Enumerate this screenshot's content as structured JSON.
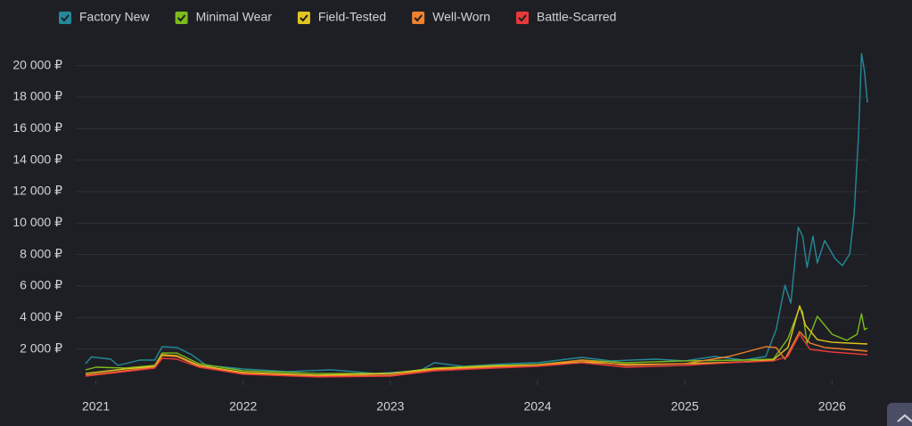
{
  "chart_data": {
    "type": "line",
    "grid": true,
    "legend": "top-left",
    "xlim": [
      2020.93,
      2026.24
    ],
    "xticks": [
      2021,
      2022,
      2023,
      2024,
      2025,
      2026
    ],
    "ylim": [
      0,
      21000
    ],
    "yticks": [
      {
        "value": 2000,
        "label": "2 000 ₽"
      },
      {
        "value": 4000,
        "label": "4 000 ₽"
      },
      {
        "value": 6000,
        "label": "6 000 ₽"
      },
      {
        "value": 8000,
        "label": "8 000 ₽"
      },
      {
        "value": 10000,
        "label": "10 000 ₽"
      },
      {
        "value": 12000,
        "label": "12 000 ₽"
      },
      {
        "value": 14000,
        "label": "14 000 ₽"
      },
      {
        "value": 16000,
        "label": "16 000 ₽"
      },
      {
        "value": 18000,
        "label": "18 000 ₽"
      },
      {
        "value": 20000,
        "label": "20 000 ₽"
      }
    ],
    "series": [
      {
        "name": "Factory New",
        "color": "#23899a",
        "x": [
          2020.93,
          2020.97,
          2021.1,
          2021.15,
          2021.3,
          2021.4,
          2021.45,
          2021.55,
          2021.65,
          2021.75,
          2022.0,
          2022.3,
          2022.6,
          2022.9,
          2023.2,
          2023.3,
          2023.5,
          2023.8,
          2024.0,
          2024.3,
          2024.5,
          2024.8,
          2025.0,
          2025.2,
          2025.4,
          2025.55,
          2025.62,
          2025.68,
          2025.72,
          2025.77,
          2025.8,
          2025.83,
          2025.87,
          2025.9,
          2025.95,
          2026.02,
          2026.07,
          2026.12,
          2026.15,
          2026.18,
          2026.2,
          2026.22,
          2026.24
        ],
        "values": [
          1070,
          1500,
          1360,
          960,
          1300,
          1300,
          2150,
          2100,
          1640,
          960,
          740,
          570,
          680,
          450,
          620,
          1130,
          900,
          1070,
          1130,
          1470,
          1250,
          1360,
          1250,
          1530,
          1300,
          1530,
          3230,
          6050,
          4920,
          9730,
          9170,
          7190,
          9170,
          7470,
          8890,
          7750,
          7300,
          8040,
          10580,
          15680,
          20770,
          19640,
          17660
        ]
      },
      {
        "name": "Minimal Wear",
        "color": "#7dbb1c",
        "x": [
          2020.93,
          2021.0,
          2021.2,
          2021.4,
          2021.45,
          2021.55,
          2021.7,
          2022.0,
          2022.5,
          2023.0,
          2023.3,
          2023.7,
          2024.0,
          2024.3,
          2024.6,
          2025.0,
          2025.4,
          2025.6,
          2025.7,
          2025.78,
          2025.8,
          2025.83,
          2025.9,
          2026.0,
          2026.1,
          2026.17,
          2026.2,
          2026.22,
          2026.24
        ],
        "values": [
          680,
          850,
          790,
          960,
          1750,
          1750,
          1070,
          620,
          450,
          450,
          790,
          960,
          1020,
          1300,
          1130,
          1250,
          1300,
          1360,
          2660,
          4640,
          4360,
          2380,
          4080,
          2940,
          2550,
          2940,
          4240,
          3230,
          3340
        ]
      },
      {
        "name": "Field-Tested",
        "color": "#e3c51f",
        "x": [
          2020.93,
          2021.2,
          2021.4,
          2021.45,
          2021.55,
          2021.7,
          2022.0,
          2022.5,
          2023.0,
          2023.3,
          2023.7,
          2024.0,
          2024.3,
          2024.6,
          2025.0,
          2025.4,
          2025.6,
          2025.7,
          2025.78,
          2025.82,
          2025.9,
          2026.0,
          2026.24
        ],
        "values": [
          450,
          740,
          900,
          1640,
          1580,
          960,
          510,
          340,
          450,
          740,
          900,
          960,
          1190,
          1020,
          1070,
          1190,
          1300,
          2100,
          4750,
          3510,
          2600,
          2430,
          2320
        ]
      },
      {
        "name": "Well-Worn",
        "color": "#f0822c",
        "x": [
          2020.93,
          2021.2,
          2021.4,
          2021.45,
          2021.55,
          2021.7,
          2022.0,
          2022.5,
          2023.0,
          2023.3,
          2023.7,
          2024.0,
          2024.3,
          2024.6,
          2025.0,
          2025.3,
          2025.55,
          2025.62,
          2025.68,
          2025.78,
          2025.85,
          2025.95,
          2026.1,
          2026.24
        ],
        "values": [
          340,
          620,
          850,
          1580,
          1530,
          900,
          450,
          280,
          340,
          680,
          850,
          960,
          1300,
          960,
          1070,
          1530,
          2150,
          2100,
          1360,
          3110,
          2380,
          2100,
          1980,
          1870
        ]
      },
      {
        "name": "Battle-Scarred",
        "color": "#e8393a",
        "x": [
          2020.93,
          2021.2,
          2021.4,
          2021.45,
          2021.55,
          2021.7,
          2022.0,
          2022.5,
          2023.0,
          2023.3,
          2023.7,
          2024.0,
          2024.3,
          2024.6,
          2025.0,
          2025.3,
          2025.6,
          2025.7,
          2025.78,
          2025.85,
          2026.0,
          2026.24
        ],
        "values": [
          280,
          570,
          790,
          1410,
          1360,
          850,
          400,
          230,
          280,
          620,
          790,
          900,
          1130,
          850,
          960,
          1130,
          1250,
          1530,
          2940,
          1980,
          1810,
          1640
        ]
      }
    ]
  }
}
